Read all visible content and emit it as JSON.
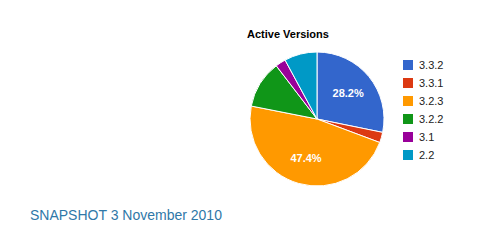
{
  "chart_data": {
    "type": "pie",
    "title": "Active Versions",
    "subtitle": "SNAPSHOT 3 November 2010",
    "categories": [
      "3.3.2",
      "3.3.1",
      "3.2.3",
      "3.2.2",
      "3.1",
      "2.2"
    ],
    "values": [
      28.2,
      2.5,
      47.4,
      11.5,
      2.5,
      7.9
    ],
    "value_labels": [
      "28.2%",
      null,
      "47.4%",
      null,
      null,
      null
    ],
    "data_labels": true,
    "colors": [
      "#3366cc",
      "#dc3912",
      "#ff9900",
      "#109618",
      "#990099",
      "#0099c6"
    ],
    "legend": "right"
  }
}
